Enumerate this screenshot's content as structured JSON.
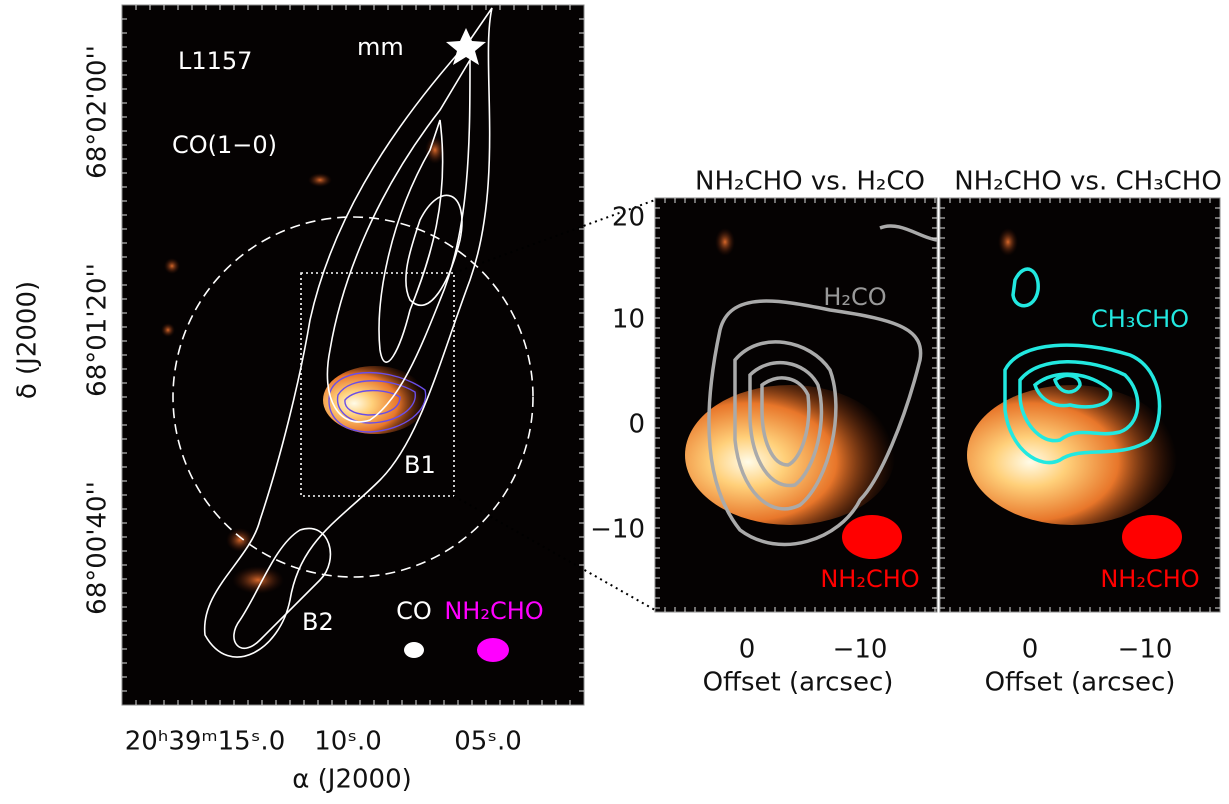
{
  "overview": {
    "labels": {
      "source": "L1157",
      "tracer": "CO(1−0)",
      "star": "mm",
      "b1": "B1",
      "b2": "B2",
      "beam_co": "CO",
      "beam_nh2cho": "NH₂CHO"
    },
    "x_ticks": [
      "20ʰ39ᵐ15ˢ.0",
      "10ˢ.0",
      "05ˢ.0"
    ],
    "y_ticks": [
      "68°02'00''",
      "68°01'20''",
      "68°00'40''"
    ],
    "x_title": "α (J2000)",
    "y_title": "δ (J2000)"
  },
  "zoom": {
    "y_ticks": [
      "20",
      "10",
      "0",
      "−10"
    ],
    "x_title": "Offset (arcsec)",
    "panels": [
      {
        "title": "NH₂CHO vs. H₂CO",
        "x_ticks": [
          "0",
          "−10"
        ],
        "overlay_label": "H₂CO",
        "beam_label": "NH₂CHO"
      },
      {
        "title": "NH₂CHO vs. CH₃CHO",
        "x_ticks": [
          "0",
          "−10"
        ],
        "overlay_label": "CH₃CHO",
        "beam_label": "NH₂CHO"
      }
    ]
  }
}
